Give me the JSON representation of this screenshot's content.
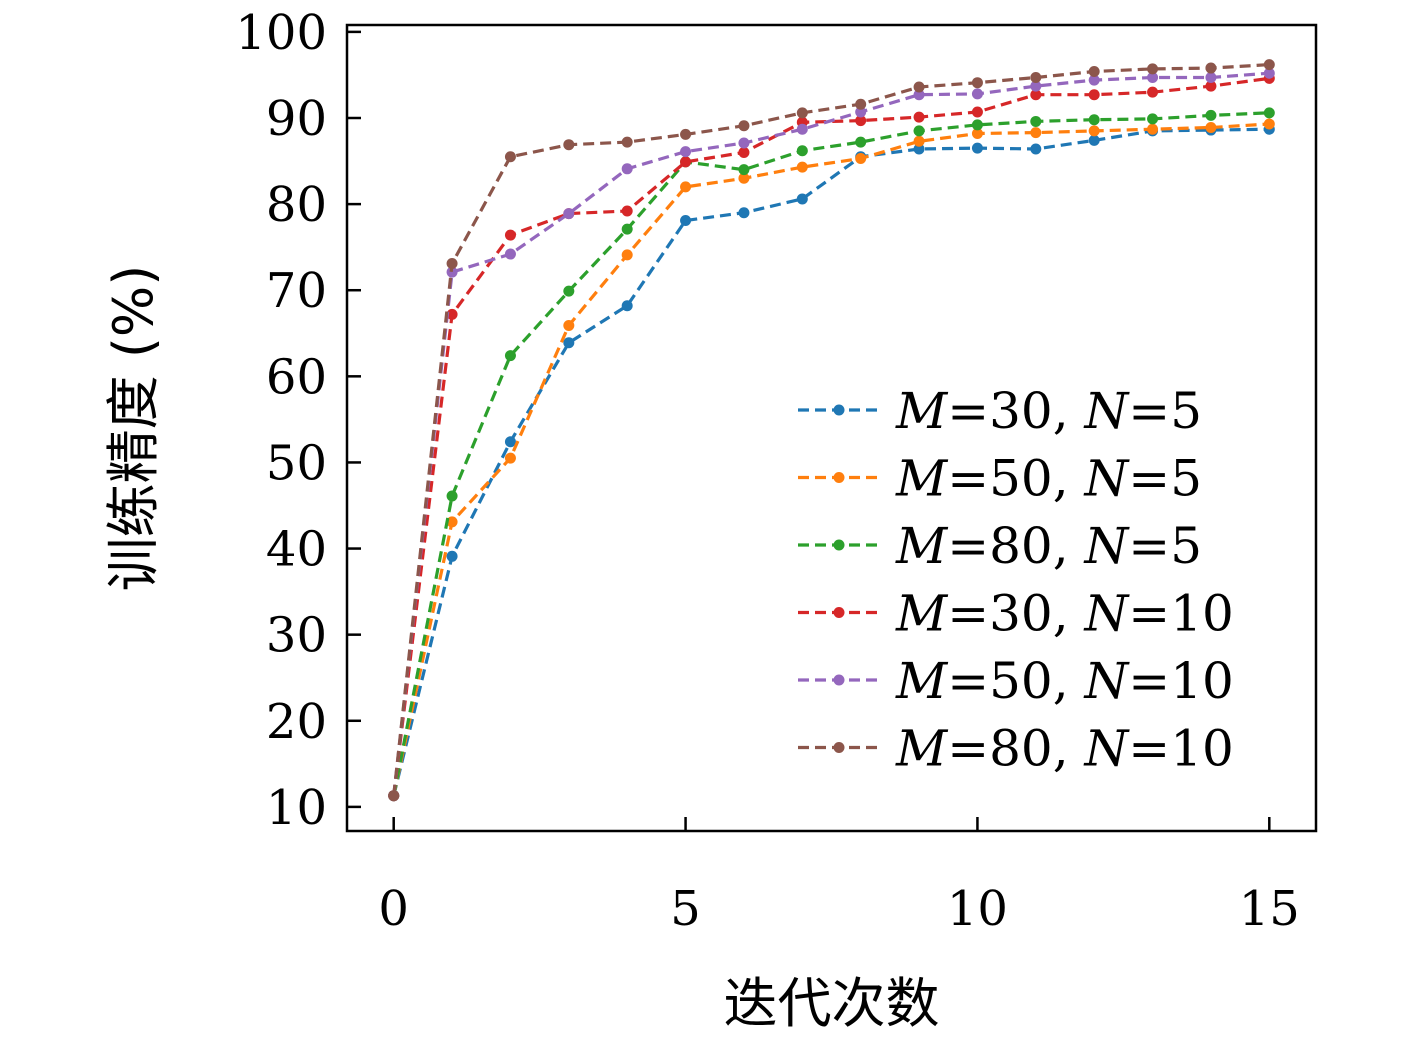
{
  "chart_data": {
    "type": "line",
    "xlabel": "迭代次数",
    "ylabel": "训练精度 (%)",
    "xlim": [
      -0.8,
      15.8
    ],
    "ylim": [
      7.2,
      100.8
    ],
    "xticks": [
      0,
      5,
      10,
      15
    ],
    "yticks": [
      10,
      20,
      30,
      40,
      50,
      60,
      70,
      80,
      90,
      100
    ],
    "grid": false,
    "legend_position": "lower-right",
    "x": [
      0,
      1,
      2,
      3,
      4,
      5,
      6,
      7,
      8,
      9,
      10,
      11,
      12,
      13,
      14,
      15
    ],
    "series": [
      {
        "name": "M=30, N=5",
        "italic_parts": [
          "M",
          "N"
        ],
        "color": "#1f77b4",
        "values": [
          11.3,
          39.1,
          52.4,
          63.9,
          68.2,
          78.1,
          79.0,
          80.6,
          85.5,
          86.4,
          86.5,
          86.4,
          87.4,
          88.5,
          88.6,
          88.7
        ]
      },
      {
        "name": "M=50, N=5",
        "italic_parts": [
          "M",
          "N"
        ],
        "color": "#ff7f0e",
        "values": [
          11.3,
          43.1,
          50.5,
          65.9,
          74.1,
          82.0,
          83.0,
          84.3,
          85.3,
          87.3,
          88.2,
          88.3,
          88.5,
          88.7,
          88.9,
          89.3
        ]
      },
      {
        "name": "M=80, N=5",
        "italic_parts": [
          "M",
          "N"
        ],
        "color": "#2ca02c",
        "values": [
          11.3,
          46.1,
          62.4,
          69.9,
          77.1,
          84.9,
          84.0,
          86.2,
          87.2,
          88.5,
          89.2,
          89.6,
          89.8,
          89.9,
          90.3,
          90.6
        ]
      },
      {
        "name": "M=30, N=10",
        "italic_parts": [
          "M",
          "N"
        ],
        "color": "#d62728",
        "values": [
          11.3,
          67.2,
          76.4,
          78.9,
          79.2,
          84.9,
          86.0,
          89.5,
          89.7,
          90.1,
          90.7,
          92.7,
          92.7,
          93.0,
          93.7,
          94.6
        ]
      },
      {
        "name": "M=50, N=10",
        "italic_parts": [
          "M",
          "N"
        ],
        "color": "#9467bd",
        "values": [
          11.3,
          72.1,
          74.2,
          78.9,
          84.1,
          86.1,
          87.1,
          88.7,
          90.7,
          92.7,
          92.8,
          93.7,
          94.4,
          94.7,
          94.7,
          95.2
        ]
      },
      {
        "name": "M=80, N=10",
        "italic_parts": [
          "M",
          "N"
        ],
        "color": "#8c564b",
        "values": [
          11.3,
          73.1,
          85.5,
          86.9,
          87.2,
          88.1,
          89.1,
          90.6,
          91.6,
          93.6,
          94.1,
          94.7,
          95.4,
          95.7,
          95.8,
          96.2
        ]
      }
    ]
  }
}
